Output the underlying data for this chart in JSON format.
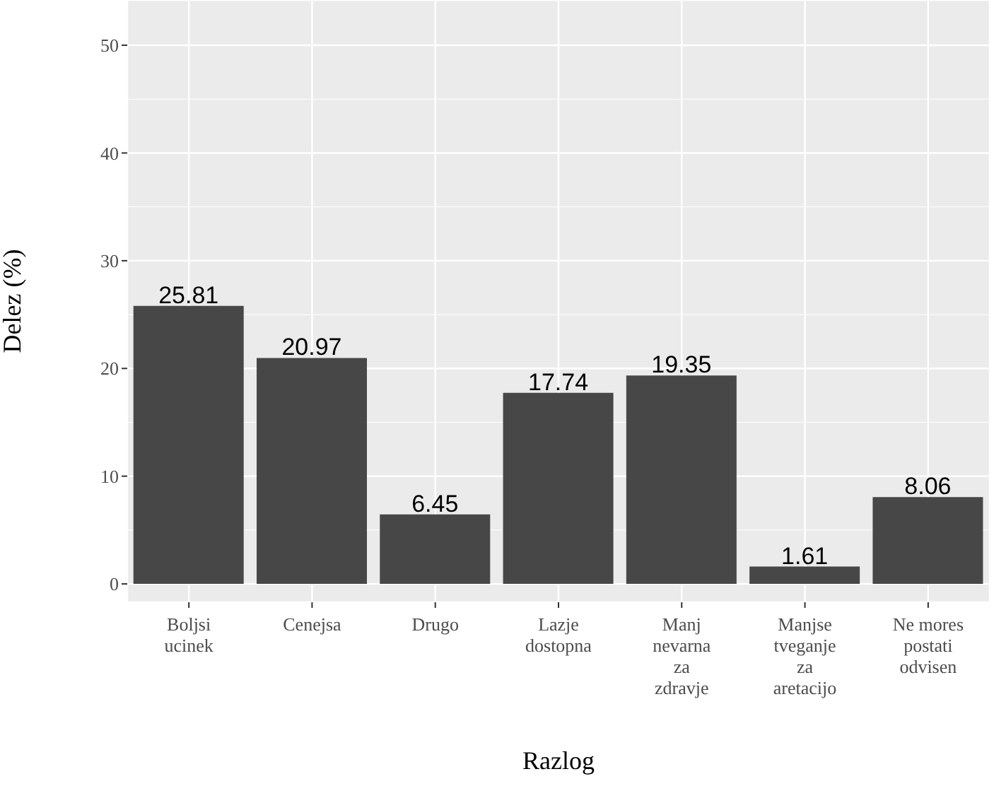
{
  "chart_data": {
    "type": "bar",
    "xlabel": "Razlog",
    "ylabel": "Delez (%)",
    "categories": [
      "Boljsi\nucinek",
      "Cenejsa",
      "Drugo",
      "Lazje\ndostopna",
      "Manj\nnevarna\nza\nzdravje",
      "Manjse\ntveganje\nza\naretacijo",
      "Ne mores\npostati\nodvisen"
    ],
    "values": [
      25.81,
      20.97,
      6.45,
      17.74,
      19.35,
      1.61,
      8.06
    ],
    "color": "#474747",
    "ylim": [
      -1.7,
      54.2
    ],
    "yticks": [
      0,
      10,
      20,
      30,
      40,
      50
    ],
    "grid": true,
    "data_labels": true
  }
}
